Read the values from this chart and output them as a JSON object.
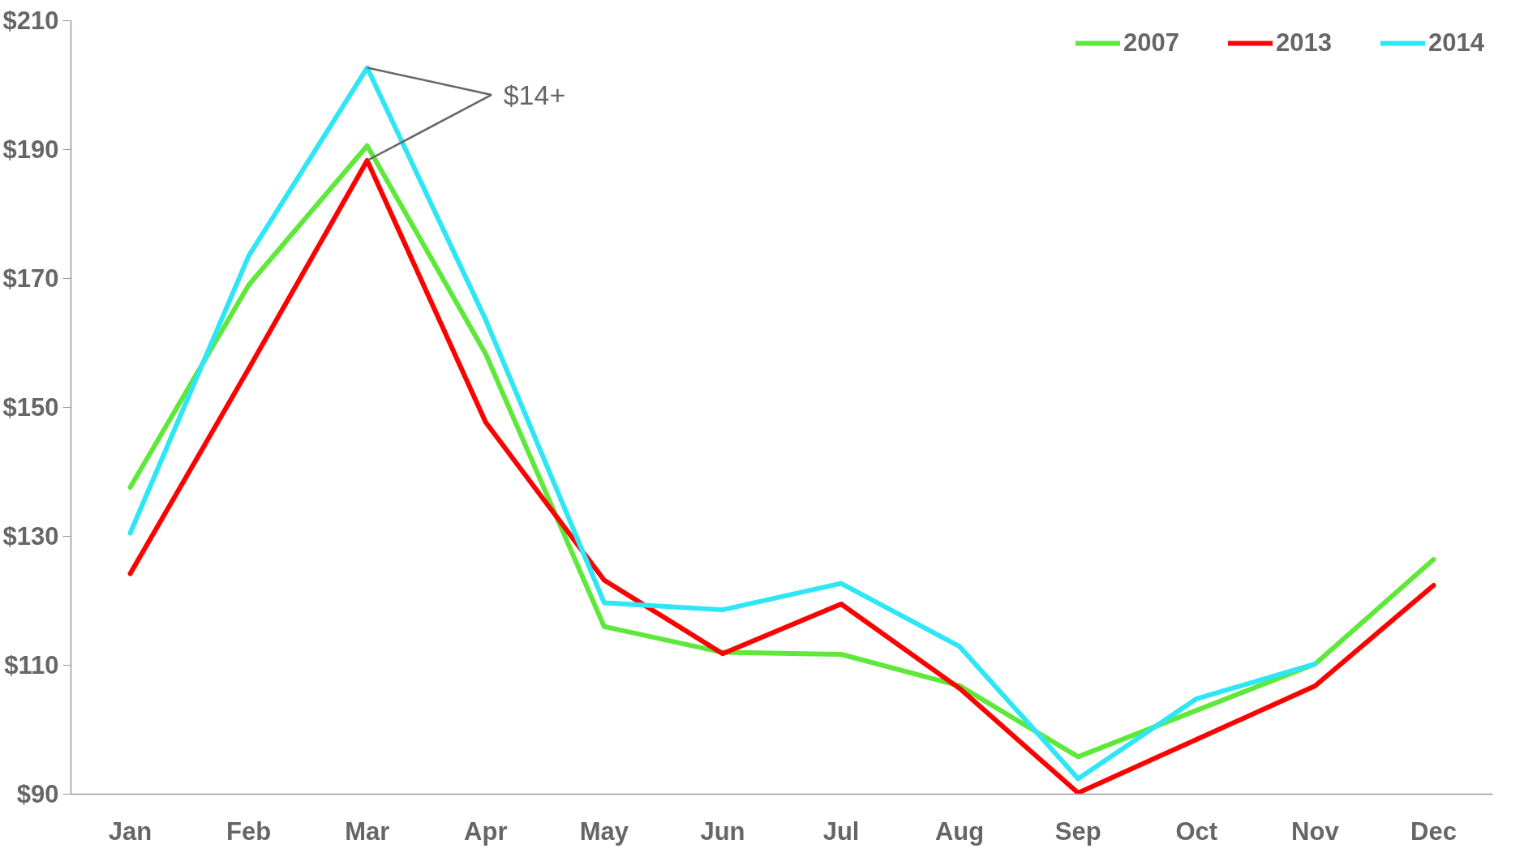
{
  "chart_data": {
    "type": "line",
    "categories": [
      "Jan",
      "Feb",
      "Mar",
      "Apr",
      "May",
      "Jun",
      "Jul",
      "Aug",
      "Sep",
      "Oct",
      "Nov",
      "Dec"
    ],
    "series": [
      {
        "name": "2007",
        "color": "#5ee83a",
        "values": [
          137.6,
          169,
          190.6,
          158.3,
          116,
          112,
          111.7,
          106.8,
          95.8,
          103,
          110.2,
          126.4
        ]
      },
      {
        "name": "2013",
        "color": "#ff0000",
        "values": [
          124.2,
          156,
          188.3,
          147.7,
          123.2,
          111.8,
          119.5,
          106.4,
          90.2,
          98.5,
          106.8,
          122.4
        ]
      },
      {
        "name": "2014",
        "color": "#2ee6f5",
        "values": [
          130.5,
          173.5,
          202.7,
          163.6,
          119.7,
          118.6,
          122.7,
          112.9,
          92.4,
          104.8,
          110.2,
          null
        ]
      }
    ],
    "ylim": [
      90,
      210
    ],
    "yticks": [
      {
        "value": 90,
        "label": "$90"
      },
      {
        "value": 110,
        "label": "$110"
      },
      {
        "value": 130,
        "label": "$130"
      },
      {
        "value": 150,
        "label": "$150"
      },
      {
        "value": 170,
        "label": "$170"
      },
      {
        "value": 190,
        "label": "$190"
      },
      {
        "value": 210,
        "label": "$210"
      }
    ],
    "annotations": [
      {
        "text": "$14+",
        "x": "Mar",
        "y": 202.7
      }
    ],
    "grid": false,
    "legend": "top right",
    "marker": "none",
    "line_style": "solid"
  }
}
